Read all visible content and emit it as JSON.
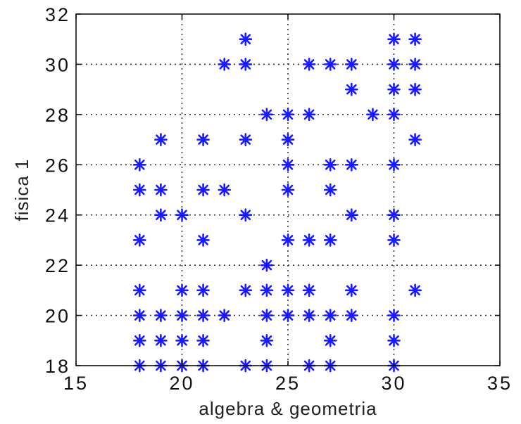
{
  "chart_data": {
    "type": "scatter",
    "title": "",
    "xlabel": "algebra & geometria",
    "ylabel": "fisica 1",
    "xlim": [
      15,
      35
    ],
    "ylim": [
      18,
      32
    ],
    "xticks": [
      "15",
      "20",
      "25",
      "30",
      "35"
    ],
    "yticks": [
      "18",
      "20",
      "22",
      "24",
      "26",
      "28",
      "30",
      "32"
    ],
    "grid": true,
    "marker": "asterisk",
    "color": "#1a1aff",
    "series": [
      {
        "points": [
          [
            18,
            18
          ],
          [
            18,
            19
          ],
          [
            18,
            20
          ],
          [
            18,
            21
          ],
          [
            18,
            23
          ],
          [
            18,
            25
          ],
          [
            18,
            26
          ],
          [
            19,
            18
          ],
          [
            19,
            19
          ],
          [
            19,
            20
          ],
          [
            19,
            24
          ],
          [
            19,
            25
          ],
          [
            19,
            27
          ],
          [
            20,
            18
          ],
          [
            20,
            19
          ],
          [
            20,
            20
          ],
          [
            20,
            21
          ],
          [
            20,
            24
          ],
          [
            21,
            18
          ],
          [
            21,
            19
          ],
          [
            21,
            20
          ],
          [
            21,
            21
          ],
          [
            21,
            23
          ],
          [
            21,
            25
          ],
          [
            21,
            27
          ],
          [
            22,
            20
          ],
          [
            22,
            25
          ],
          [
            22,
            30
          ],
          [
            23,
            18
          ],
          [
            23,
            21
          ],
          [
            23,
            24
          ],
          [
            23,
            27
          ],
          [
            23,
            30
          ],
          [
            23,
            31
          ],
          [
            24,
            18
          ],
          [
            24,
            19
          ],
          [
            24,
            20
          ],
          [
            24,
            21
          ],
          [
            24,
            22
          ],
          [
            24,
            28
          ],
          [
            25,
            20
          ],
          [
            25,
            21
          ],
          [
            25,
            23
          ],
          [
            25,
            25
          ],
          [
            25,
            26
          ],
          [
            25,
            27
          ],
          [
            25,
            28
          ],
          [
            26,
            18
          ],
          [
            26,
            20
          ],
          [
            26,
            21
          ],
          [
            26,
            23
          ],
          [
            26,
            28
          ],
          [
            26,
            30
          ],
          [
            27,
            18
          ],
          [
            27,
            19
          ],
          [
            27,
            20
          ],
          [
            27,
            23
          ],
          [
            27,
            25
          ],
          [
            27,
            26
          ],
          [
            27,
            30
          ],
          [
            28,
            20
          ],
          [
            28,
            21
          ],
          [
            28,
            24
          ],
          [
            28,
            26
          ],
          [
            28,
            29
          ],
          [
            28,
            30
          ],
          [
            29,
            28
          ],
          [
            30,
            18
          ],
          [
            30,
            19
          ],
          [
            30,
            20
          ],
          [
            30,
            23
          ],
          [
            30,
            24
          ],
          [
            30,
            26
          ],
          [
            30,
            28
          ],
          [
            30,
            29
          ],
          [
            30,
            30
          ],
          [
            30,
            31
          ],
          [
            31,
            21
          ],
          [
            31,
            27
          ],
          [
            31,
            29
          ],
          [
            31,
            30
          ],
          [
            31,
            31
          ]
        ]
      }
    ]
  }
}
